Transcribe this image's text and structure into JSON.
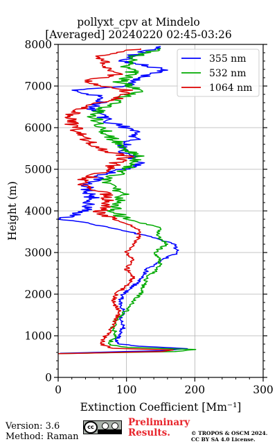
{
  "title": {
    "line1": "pollyxt_cpv at Mindelo",
    "line2": "[Averaged] 20240220 02:45-03:26"
  },
  "footer": {
    "version": "Version: 3.6",
    "method": "Method: Raman",
    "preliminary_1": "Preliminary",
    "preliminary_2": "Results.",
    "copyright_1": "© TROPOS & OSCM 2024.",
    "copyright_2": "CC BY SA 4.0 License."
  },
  "colors": {
    "355": "#0000ff",
    "532": "#00aa00",
    "1064": "#dd0000"
  },
  "chart_data": {
    "type": "line",
    "title": "pollyxt_cpv at Mindelo [Averaged] 20240220 02:45-03:26",
    "xlabel": "Extinction Coefficient [Mm⁻¹]",
    "ylabel": "Height (m)",
    "xlim": [
      0,
      300
    ],
    "ylim": [
      0,
      8000
    ],
    "xticks": [
      0,
      100,
      200,
      300
    ],
    "yticks": [
      0,
      1000,
      2000,
      3000,
      4000,
      5000,
      6000,
      7000,
      8000
    ],
    "grid": true,
    "legend_position": "top-right",
    "series": [
      {
        "name": "355 nm",
        "color": "#0000ff",
        "points": [
          [
            0,
            580
          ],
          [
            150,
            640
          ],
          [
            190,
            690
          ],
          [
            120,
            750
          ],
          [
            90,
            800
          ],
          [
            85,
            900
          ],
          [
            90,
            1000
          ],
          [
            95,
            1200
          ],
          [
            92,
            1400
          ],
          [
            95,
            1600
          ],
          [
            90,
            1800
          ],
          [
            95,
            2000
          ],
          [
            110,
            2200
          ],
          [
            125,
            2400
          ],
          [
            130,
            2600
          ],
          [
            150,
            2800
          ],
          [
            175,
            3000
          ],
          [
            170,
            3200
          ],
          [
            130,
            3400
          ],
          [
            75,
            3600
          ],
          [
            30,
            3750
          ],
          [
            0,
            3800
          ],
          [
            40,
            4000
          ],
          [
            50,
            4300
          ],
          [
            40,
            4600
          ],
          [
            70,
            4900
          ],
          [
            120,
            5100
          ],
          [
            110,
            5300
          ],
          [
            90,
            5500
          ],
          [
            110,
            5700
          ],
          [
            120,
            5900
          ],
          [
            80,
            6100
          ],
          [
            60,
            6300
          ],
          [
            50,
            6500
          ],
          [
            70,
            6700
          ],
          [
            30,
            6900
          ],
          [
            100,
            7000
          ],
          [
            120,
            7200
          ],
          [
            160,
            7400
          ],
          [
            90,
            7600
          ],
          [
            120,
            7800
          ],
          [
            150,
            7950
          ]
        ]
      },
      {
        "name": "532 nm",
        "color": "#00aa00",
        "points": [
          [
            0,
            570
          ],
          [
            170,
            620
          ],
          [
            200,
            670
          ],
          [
            100,
            720
          ],
          [
            75,
            780
          ],
          [
            78,
            900
          ],
          [
            85,
            1000
          ],
          [
            80,
            1200
          ],
          [
            85,
            1400
          ],
          [
            100,
            1600
          ],
          [
            110,
            1800
          ],
          [
            120,
            2000
          ],
          [
            125,
            2200
          ],
          [
            130,
            2400
          ],
          [
            145,
            2600
          ],
          [
            150,
            2800
          ],
          [
            140,
            3000
          ],
          [
            160,
            3200
          ],
          [
            145,
            3400
          ],
          [
            150,
            3600
          ],
          [
            100,
            3800
          ],
          [
            80,
            4000
          ],
          [
            90,
            4200
          ],
          [
            95,
            4400
          ],
          [
            65,
            4700
          ],
          [
            90,
            4900
          ],
          [
            110,
            5100
          ],
          [
            120,
            5300
          ],
          [
            100,
            5500
          ],
          [
            80,
            5700
          ],
          [
            70,
            5900
          ],
          [
            60,
            6100
          ],
          [
            50,
            6300
          ],
          [
            70,
            6500
          ],
          [
            90,
            6700
          ],
          [
            120,
            6900
          ],
          [
            90,
            7100
          ],
          [
            110,
            7300
          ],
          [
            100,
            7500
          ],
          [
            110,
            7700
          ],
          [
            150,
            7900
          ]
        ]
      },
      {
        "name": "1064 nm",
        "color": "#dd0000",
        "points": [
          [
            0,
            570
          ],
          [
            150,
            620
          ],
          [
            165,
            660
          ],
          [
            80,
            700
          ],
          [
            65,
            780
          ],
          [
            65,
            900
          ],
          [
            70,
            1000
          ],
          [
            80,
            1200
          ],
          [
            85,
            1400
          ],
          [
            90,
            1600
          ],
          [
            80,
            1800
          ],
          [
            85,
            2000
          ],
          [
            100,
            2200
          ],
          [
            110,
            2400
          ],
          [
            100,
            2600
          ],
          [
            110,
            2800
          ],
          [
            100,
            3000
          ],
          [
            110,
            3200
          ],
          [
            120,
            3400
          ],
          [
            115,
            3600
          ],
          [
            80,
            3800
          ],
          [
            60,
            4000
          ],
          [
            75,
            4200
          ],
          [
            70,
            4400
          ],
          [
            30,
            4700
          ],
          [
            60,
            4900
          ],
          [
            80,
            5100
          ],
          [
            100,
            5300
          ],
          [
            60,
            5500
          ],
          [
            40,
            5700
          ],
          [
            30,
            5900
          ],
          [
            20,
            6100
          ],
          [
            15,
            6300
          ],
          [
            40,
            6500
          ],
          [
            90,
            6700
          ],
          [
            100,
            6900
          ],
          [
            40,
            7100
          ],
          [
            90,
            7300
          ],
          [
            70,
            7500
          ],
          [
            60,
            7700
          ],
          [
            120,
            7900
          ]
        ]
      }
    ]
  }
}
